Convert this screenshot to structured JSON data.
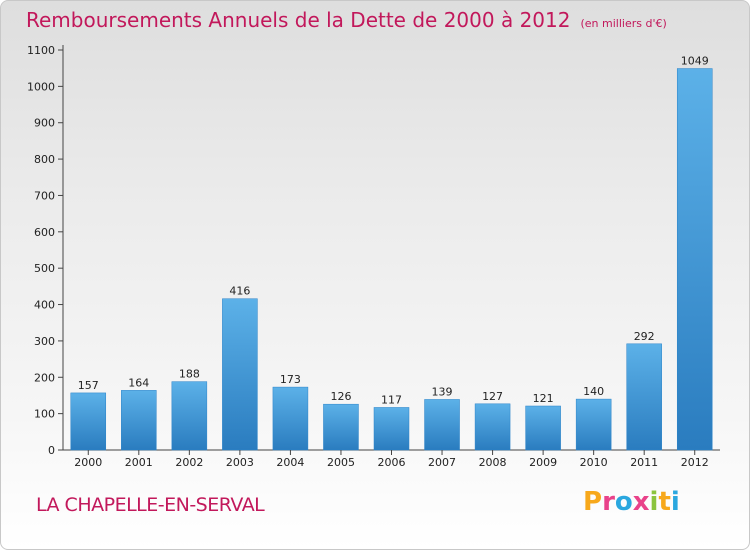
{
  "chart_data": {
    "type": "bar",
    "title": "Remboursements Annuels de la Dette de 2000 à 2012",
    "unit_label": "(en milliers d'€)",
    "categories": [
      "2000",
      "2001",
      "2002",
      "2003",
      "2004",
      "2005",
      "2006",
      "2007",
      "2008",
      "2009",
      "2010",
      "2011",
      "2012"
    ],
    "values": [
      157,
      164,
      188,
      416,
      173,
      126,
      117,
      139,
      127,
      121,
      140,
      292,
      1049
    ],
    "ylim": [
      0,
      1100
    ],
    "yticks": [
      0,
      100,
      200,
      300,
      400,
      500,
      600,
      700,
      800,
      900,
      1000,
      1100
    ],
    "xlabel": "",
    "ylabel": "",
    "grid": false
  },
  "place_name": "LA CHAPELLE-EN-SERVAL",
  "brand": {
    "letters": [
      "P",
      "r",
      "o",
      "x",
      "i",
      "t",
      "i"
    ],
    "colors": [
      "#f7a81b",
      "#e9428a",
      "#2aa7df",
      "#e9428a",
      "#8bc43f",
      "#f7a81b",
      "#2aa7df"
    ]
  },
  "colors": {
    "bar_light": "#5cb1e8",
    "bar_dark": "#2a7cbf",
    "axis": "#444444",
    "title": "#c2185b"
  }
}
